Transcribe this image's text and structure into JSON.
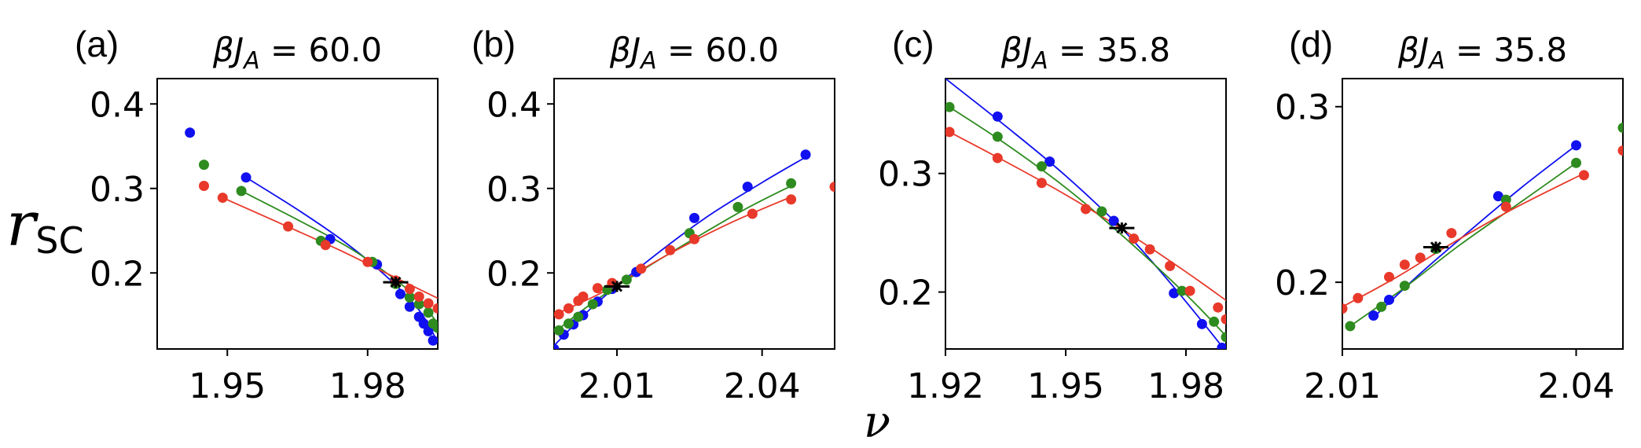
{
  "figure": {
    "ylabel_main": "r",
    "ylabel_sub": "SC",
    "xlabel": "ν"
  },
  "chart_data": [
    {
      "panel": "(a)",
      "type": "scatter",
      "title": "βJ_A = 60.0",
      "title_parts": {
        "var": "βJ",
        "sub": "A",
        "rest": " = 60.0"
      },
      "xlim": [
        1.935,
        1.995
      ],
      "ylim": [
        0.11,
        0.43
      ],
      "xticks": [
        1.95,
        1.98
      ],
      "xtick_labels": [
        "1.95",
        "1.98"
      ],
      "yticks": [
        0.2,
        0.3,
        0.4
      ],
      "ytick_labels": [
        "0.2",
        "0.3",
        "0.4"
      ],
      "series": [
        {
          "name": "blue",
          "color": "#1010f0",
          "points": [
            [
              1.942,
              0.366
            ],
            [
              1.954,
              0.313
            ],
            [
              1.972,
              0.24
            ],
            [
              1.982,
              0.21
            ],
            [
              1.987,
              0.175
            ],
            [
              1.989,
              0.16
            ],
            [
              1.991,
              0.148
            ],
            [
              1.992,
              0.14
            ],
            [
              1.993,
              0.131
            ],
            [
              1.994,
              0.12
            ]
          ],
          "fit": [
            [
              1.954,
              0.313
            ],
            [
              1.965,
              0.275
            ],
            [
              1.975,
              0.237
            ],
            [
              1.984,
              0.196
            ],
            [
              1.991,
              0.156
            ],
            [
              1.995,
              0.118
            ]
          ]
        },
        {
          "name": "green",
          "color": "#2e8b1f",
          "points": [
            [
              1.945,
              0.328
            ],
            [
              1.953,
              0.297
            ],
            [
              1.97,
              0.238
            ],
            [
              1.981,
              0.213
            ],
            [
              1.986,
              0.187
            ],
            [
              1.989,
              0.171
            ],
            [
              1.991,
              0.163
            ],
            [
              1.993,
              0.153
            ],
            [
              1.994,
              0.14
            ],
            [
              1.995,
              0.135
            ]
          ],
          "fit": [
            [
              1.953,
              0.297
            ],
            [
              1.965,
              0.263
            ],
            [
              1.976,
              0.23
            ],
            [
              1.985,
              0.196
            ],
            [
              1.991,
              0.168
            ],
            [
              1.995,
              0.14
            ]
          ]
        },
        {
          "name": "red",
          "color": "#e8392a",
          "points": [
            [
              1.945,
              0.303
            ],
            [
              1.949,
              0.289
            ],
            [
              1.963,
              0.255
            ],
            [
              1.971,
              0.233
            ],
            [
              1.98,
              0.213
            ],
            [
              1.986,
              0.191
            ],
            [
              1.989,
              0.181
            ],
            [
              1.991,
              0.172
            ],
            [
              1.993,
              0.164
            ],
            [
              1.995,
              0.158
            ]
          ],
          "fit": [
            [
              1.949,
              0.289
            ],
            [
              1.962,
              0.257
            ],
            [
              1.974,
              0.227
            ],
            [
              1.985,
              0.197
            ],
            [
              1.995,
              0.17
            ]
          ]
        }
      ],
      "crossing": {
        "x": 1.986,
        "y": 0.189
      }
    },
    {
      "panel": "(b)",
      "type": "scatter",
      "title": "βJ_A = 60.0",
      "title_parts": {
        "var": "βJ",
        "sub": "A",
        "rest": " = 60.0"
      },
      "xlim": [
        1.997,
        2.055
      ],
      "ylim": [
        0.11,
        0.43
      ],
      "xticks": [
        2.01,
        2.04
      ],
      "xtick_labels": [
        "2.01",
        "2.04"
      ],
      "yticks": [
        0.2,
        0.3,
        0.4
      ],
      "ytick_labels": [
        "0.2",
        "0.3",
        "0.4"
      ],
      "series": [
        {
          "name": "blue",
          "color": "#1010f0",
          "points": [
            [
              1.997,
              0.11
            ],
            [
              1.999,
              0.127
            ],
            [
              2.001,
              0.139
            ],
            [
              2.003,
              0.15
            ],
            [
              2.006,
              0.166
            ],
            [
              2.009,
              0.181
            ],
            [
              2.014,
              0.201
            ],
            [
              2.026,
              0.265
            ],
            [
              2.037,
              0.302
            ],
            [
              2.049,
              0.34
            ]
          ],
          "fit": [
            [
              1.997,
              0.114
            ],
            [
              2.005,
              0.16
            ],
            [
              2.015,
              0.208
            ],
            [
              2.028,
              0.264
            ],
            [
              2.04,
              0.307
            ],
            [
              2.049,
              0.337
            ]
          ]
        },
        {
          "name": "green",
          "color": "#2e8b1f",
          "points": [
            [
              1.998,
              0.132
            ],
            [
              2.0,
              0.14
            ],
            [
              2.002,
              0.148
            ],
            [
              2.005,
              0.163
            ],
            [
              2.008,
              0.18
            ],
            [
              2.012,
              0.192
            ],
            [
              2.025,
              0.247
            ],
            [
              2.035,
              0.278
            ],
            [
              2.046,
              0.306
            ]
          ],
          "fit": [
            [
              1.998,
              0.134
            ],
            [
              2.006,
              0.169
            ],
            [
              2.016,
              0.206
            ],
            [
              2.027,
              0.244
            ],
            [
              2.037,
              0.277
            ],
            [
              2.046,
              0.303
            ]
          ]
        },
        {
          "name": "red",
          "color": "#e8392a",
          "points": [
            [
              1.998,
              0.151
            ],
            [
              2.0,
              0.158
            ],
            [
              2.002,
              0.167
            ],
            [
              2.003,
              0.172
            ],
            [
              2.006,
              0.182
            ],
            [
              2.009,
              0.188
            ],
            [
              2.015,
              0.205
            ],
            [
              2.021,
              0.227
            ],
            [
              2.026,
              0.24
            ],
            [
              2.038,
              0.27
            ],
            [
              2.046,
              0.287
            ],
            [
              2.055,
              0.302
            ]
          ],
          "fit": [
            [
              1.998,
              0.153
            ],
            [
              2.008,
              0.18
            ],
            [
              2.02,
              0.22
            ],
            [
              2.033,
              0.258
            ],
            [
              2.046,
              0.29
            ]
          ]
        }
      ],
      "crossing": {
        "x": 2.01,
        "y": 0.184
      }
    },
    {
      "panel": "(c)",
      "type": "scatter",
      "title": "βJ_A = 35.8",
      "title_parts": {
        "var": "βJ",
        "sub": "A",
        "rest": " = 35.8"
      },
      "xlim": [
        1.92,
        1.99
      ],
      "ylim": [
        0.152,
        0.38
      ],
      "xticks": [
        1.92,
        1.95,
        1.98
      ],
      "xtick_labels": [
        "1.92",
        "1.95",
        "1.98"
      ],
      "yticks": [
        0.2,
        0.3
      ],
      "ytick_labels": [
        "0.2",
        "0.3"
      ],
      "series": [
        {
          "name": "blue",
          "color": "#1010f0",
          "points": [
            [
              1.933,
              0.348
            ],
            [
              1.946,
              0.31
            ],
            [
              1.962,
              0.26
            ],
            [
              1.977,
              0.199
            ],
            [
              1.984,
              0.173
            ],
            [
              1.989,
              0.153
            ]
          ],
          "fit": [
            [
              1.92,
              0.38
            ],
            [
              1.935,
              0.34
            ],
            [
              1.95,
              0.298
            ],
            [
              1.965,
              0.25
            ],
            [
              1.978,
              0.2
            ],
            [
              1.99,
              0.15
            ]
          ]
        },
        {
          "name": "green",
          "color": "#2e8b1f",
          "points": [
            [
              1.921,
              0.356
            ],
            [
              1.933,
              0.331
            ],
            [
              1.944,
              0.306
            ],
            [
              1.959,
              0.268
            ],
            [
              1.979,
              0.201
            ],
            [
              1.987,
              0.175
            ],
            [
              1.99,
              0.162
            ]
          ],
          "fit": [
            [
              1.921,
              0.356
            ],
            [
              1.935,
              0.325
            ],
            [
              1.95,
              0.288
            ],
            [
              1.965,
              0.245
            ],
            [
              1.98,
              0.198
            ],
            [
              1.99,
              0.163
            ]
          ]
        },
        {
          "name": "red",
          "color": "#e8392a",
          "points": [
            [
              1.921,
              0.335
            ],
            [
              1.933,
              0.313
            ],
            [
              1.944,
              0.292
            ],
            [
              1.955,
              0.27
            ],
            [
              1.967,
              0.245
            ],
            [
              1.971,
              0.236
            ],
            [
              1.976,
              0.222
            ],
            [
              1.981,
              0.201
            ],
            [
              1.988,
              0.187
            ],
            [
              1.99,
              0.177
            ]
          ],
          "fit": [
            [
              1.921,
              0.335
            ],
            [
              1.935,
              0.31
            ],
            [
              1.95,
              0.282
            ],
            [
              1.965,
              0.251
            ],
            [
              1.98,
              0.217
            ],
            [
              1.99,
              0.193
            ]
          ]
        }
      ],
      "crossing": {
        "x": 1.964,
        "y": 0.254
      }
    },
    {
      "panel": "(d)",
      "type": "scatter",
      "title": "βJ_A = 35.8",
      "title_parts": {
        "var": "βJ",
        "sub": "A",
        "rest": " = 35.8"
      },
      "xlim": [
        2.01,
        2.046
      ],
      "ylim": [
        0.162,
        0.316
      ],
      "xticks": [
        2.01,
        2.04
      ],
      "xtick_labels": [
        "2.01",
        "2.04"
      ],
      "yticks": [
        0.2,
        0.3
      ],
      "ytick_labels": [
        "0.2",
        "0.3"
      ],
      "series": [
        {
          "name": "blue",
          "color": "#1010f0",
          "points": [
            [
              2.014,
              0.181
            ],
            [
              2.016,
              0.19
            ],
            [
              2.022,
              0.219
            ],
            [
              2.03,
              0.249
            ],
            [
              2.04,
              0.278
            ]
          ],
          "fit": [
            [
              2.014,
              0.18
            ],
            [
              2.02,
              0.205
            ],
            [
              2.026,
              0.228
            ],
            [
              2.033,
              0.254
            ],
            [
              2.04,
              0.278
            ]
          ]
        },
        {
          "name": "green",
          "color": "#2e8b1f",
          "points": [
            [
              2.011,
              0.175
            ],
            [
              2.015,
              0.186
            ],
            [
              2.018,
              0.198
            ],
            [
              2.022,
              0.219
            ],
            [
              2.031,
              0.247
            ],
            [
              2.04,
              0.268
            ],
            [
              2.046,
              0.288
            ]
          ],
          "fit": [
            [
              2.011,
              0.175
            ],
            [
              2.018,
              0.197
            ],
            [
              2.025,
              0.221
            ],
            [
              2.033,
              0.246
            ],
            [
              2.04,
              0.268
            ]
          ]
        },
        {
          "name": "red",
          "color": "#e8392a",
          "points": [
            [
              2.01,
              0.185
            ],
            [
              2.012,
              0.191
            ],
            [
              2.016,
              0.203
            ],
            [
              2.018,
              0.21
            ],
            [
              2.02,
              0.214
            ],
            [
              2.024,
              0.228
            ],
            [
              2.031,
              0.243
            ],
            [
              2.041,
              0.261
            ],
            [
              2.046,
              0.275
            ]
          ],
          "fit": [
            [
              2.01,
              0.186
            ],
            [
              2.017,
              0.203
            ],
            [
              2.024,
              0.222
            ],
            [
              2.032,
              0.242
            ],
            [
              2.041,
              0.262
            ]
          ]
        }
      ],
      "crossing": {
        "x": 2.022,
        "y": 0.22
      }
    }
  ]
}
